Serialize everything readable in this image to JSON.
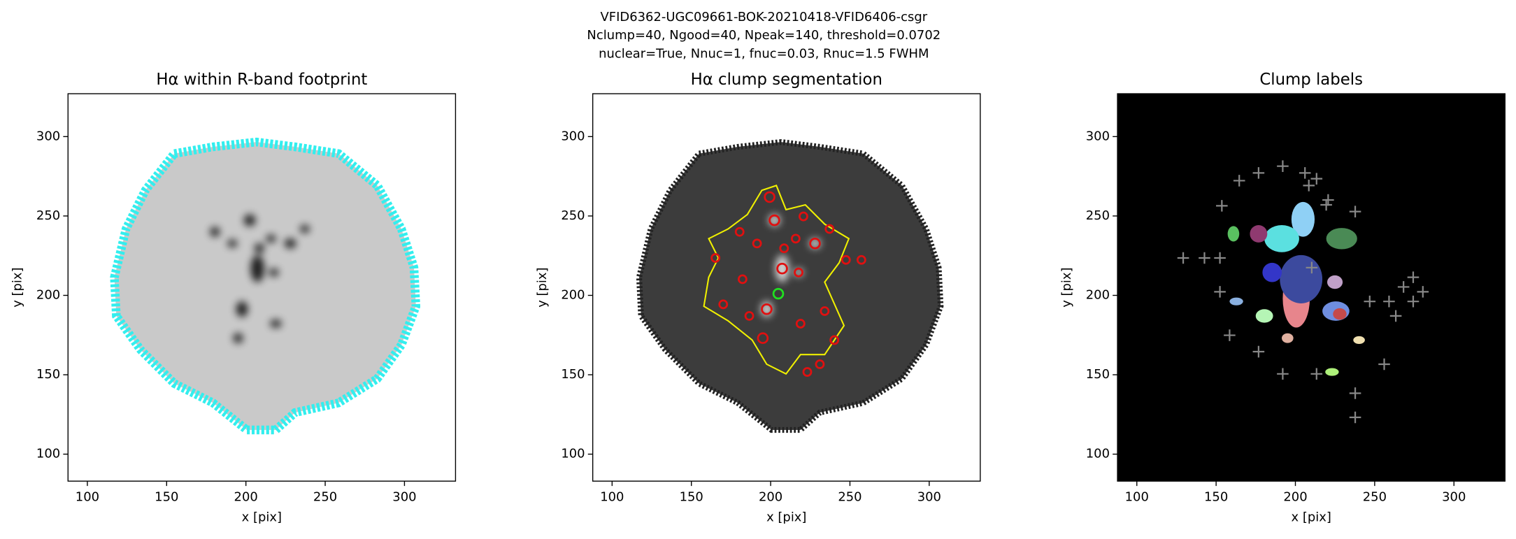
{
  "suptitle": [
    "VFID6362-UGC09661-BOK-20210418-VFID6406-csgr",
    "Nclump=40, Ngood=40, Npeak=140, threshold=0.0702",
    "nuclear=True, Nnuc=1, fnuc=0.03, Rnuc=1.5 FWHM"
  ],
  "chart_data": [
    {
      "type": "image",
      "title": "Hα within R-band footprint",
      "xlabel": "x [pix]",
      "ylabel": "y [pix]",
      "xlim": [
        87.8,
        332.2
      ],
      "ylim": [
        83,
        327
      ],
      "xticks": [
        100,
        150,
        200,
        250,
        300
      ],
      "yticks": [
        100,
        150,
        200,
        250,
        300
      ]
    },
    {
      "type": "image",
      "title": "Hα clump segmentation",
      "xlabel": "x [pix]",
      "ylabel": "y [pix]",
      "xlim": [
        87.8,
        332.2
      ],
      "ylim": [
        83,
        327
      ],
      "xticks": [
        100,
        150,
        200,
        250,
        300
      ],
      "yticks": [
        100,
        150,
        200,
        250,
        300
      ]
    },
    {
      "type": "image",
      "title": "Clump labels",
      "xlabel": "x [pix]",
      "ylabel": "y [pix]",
      "xlim": [
        87.8,
        332.2
      ],
      "ylim": [
        83,
        327
      ],
      "xticks": [
        100,
        150,
        200,
        250,
        300
      ],
      "yticks": [
        100,
        150,
        200,
        250,
        300
      ]
    }
  ]
}
